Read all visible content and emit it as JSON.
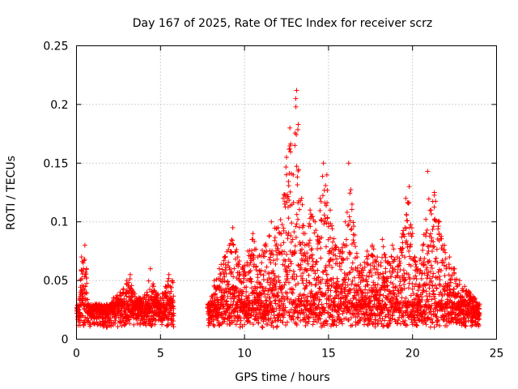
{
  "chart_data": {
    "type": "scatter",
    "title": "Day 167 of 2025, Rate Of TEC Index for receiver scrz",
    "xlabel": "GPS time / hours",
    "ylabel": "ROTI / TECUs",
    "xlim": [
      0,
      25
    ],
    "ylim": [
      0,
      0.25
    ],
    "xticks": [
      0,
      5,
      10,
      15,
      20,
      25
    ],
    "yticks": [
      0,
      0.05,
      0.1,
      0.15,
      0.2,
      0.25
    ],
    "xtick_labels": [
      "0",
      "5",
      "10",
      "15",
      "20",
      "25"
    ],
    "ytick_labels": [
      "0",
      "0.05",
      "0.1",
      "0.15",
      "0.2",
      "0.25"
    ],
    "grid": true,
    "marker": "+",
    "series": [
      {
        "name": "ROTI",
        "color": "#ff0000",
        "data_gap_hours": [
          5.8,
          7.8
        ],
        "points": [
          [
            0.1,
            0.022
          ],
          [
            0.2,
            0.035
          ],
          [
            0.3,
            0.07
          ],
          [
            0.4,
            0.065
          ],
          [
            0.5,
            0.08
          ],
          [
            0.6,
            0.06
          ],
          [
            0.7,
            0.03
          ],
          [
            0.9,
            0.025
          ],
          [
            1.2,
            0.03
          ],
          [
            1.5,
            0.028
          ],
          [
            1.8,
            0.022
          ],
          [
            2.2,
            0.035
          ],
          [
            2.6,
            0.04
          ],
          [
            3.0,
            0.05
          ],
          [
            3.2,
            0.055
          ],
          [
            3.4,
            0.04
          ],
          [
            3.8,
            0.035
          ],
          [
            4.2,
            0.04
          ],
          [
            4.4,
            0.06
          ],
          [
            4.6,
            0.045
          ],
          [
            5.0,
            0.035
          ],
          [
            5.3,
            0.045
          ],
          [
            5.5,
            0.055
          ],
          [
            5.7,
            0.05
          ],
          [
            7.9,
            0.03
          ],
          [
            8.2,
            0.05
          ],
          [
            8.5,
            0.06
          ],
          [
            8.8,
            0.07
          ],
          [
            9.1,
            0.08
          ],
          [
            9.3,
            0.095
          ],
          [
            9.6,
            0.07
          ],
          [
            9.9,
            0.06
          ],
          [
            10.2,
            0.075
          ],
          [
            10.5,
            0.09
          ],
          [
            10.8,
            0.07
          ],
          [
            11.2,
            0.08
          ],
          [
            11.6,
            0.1
          ],
          [
            12.0,
            0.095
          ],
          [
            12.3,
            0.12
          ],
          [
            12.5,
            0.155
          ],
          [
            12.7,
            0.18
          ],
          [
            12.9,
            0.14
          ],
          [
            13.1,
            0.212
          ],
          [
            13.05,
            0.205
          ],
          [
            13.2,
            0.183
          ],
          [
            13.4,
            0.12
          ],
          [
            13.6,
            0.09
          ],
          [
            13.9,
            0.11
          ],
          [
            14.2,
            0.1
          ],
          [
            14.5,
            0.12
          ],
          [
            14.7,
            0.15
          ],
          [
            14.9,
            0.14
          ],
          [
            15.1,
            0.11
          ],
          [
            15.4,
            0.08
          ],
          [
            15.7,
            0.075
          ],
          [
            16.0,
            0.1
          ],
          [
            16.2,
            0.15
          ],
          [
            16.4,
            0.115
          ],
          [
            16.7,
            0.07
          ],
          [
            17.0,
            0.06
          ],
          [
            17.3,
            0.075
          ],
          [
            17.6,
            0.08
          ],
          [
            17.9,
            0.07
          ],
          [
            18.2,
            0.085
          ],
          [
            18.5,
            0.065
          ],
          [
            18.8,
            0.08
          ],
          [
            19.1,
            0.07
          ],
          [
            19.4,
            0.09
          ],
          [
            19.6,
            0.12
          ],
          [
            19.8,
            0.13
          ],
          [
            20.0,
            0.09
          ],
          [
            20.3,
            0.06
          ],
          [
            20.6,
            0.08
          ],
          [
            20.9,
            0.143
          ],
          [
            21.1,
            0.11
          ],
          [
            21.3,
            0.125
          ],
          [
            21.6,
            0.1
          ],
          [
            21.9,
            0.08
          ],
          [
            22.2,
            0.07
          ],
          [
            22.5,
            0.06
          ],
          [
            22.8,
            0.05
          ],
          [
            23.1,
            0.045
          ],
          [
            23.4,
            0.04
          ],
          [
            23.7,
            0.035
          ],
          [
            23.9,
            0.03
          ]
        ]
      }
    ]
  }
}
